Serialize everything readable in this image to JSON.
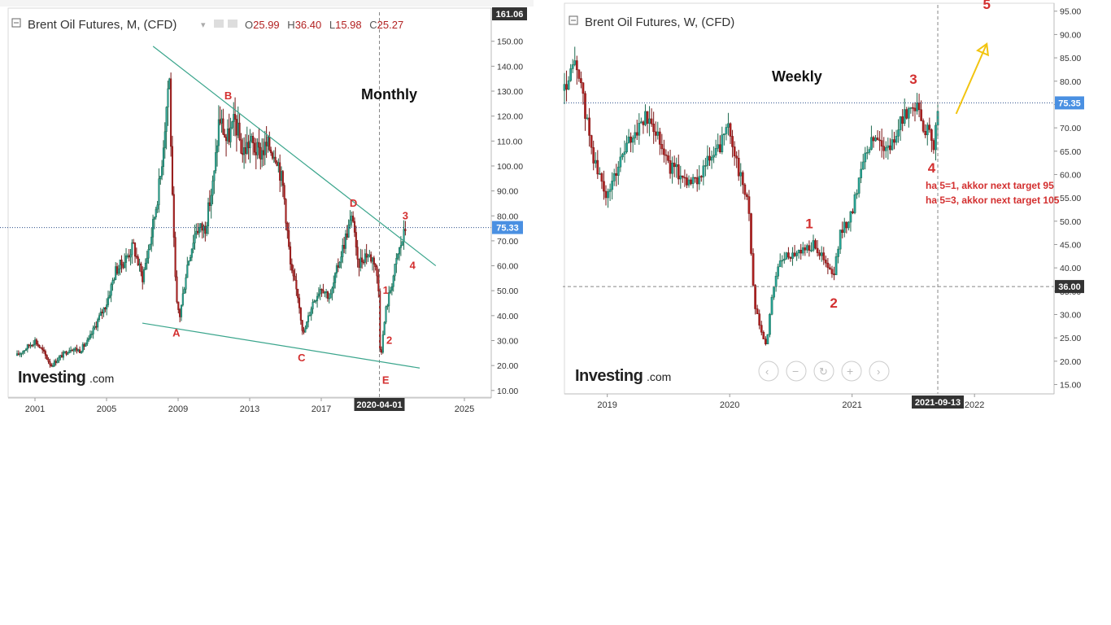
{
  "charts": [
    {
      "id": "left",
      "header": {
        "title": "Brent Oil Futures,  M,  (CFD)",
        "ohlc": {
          "o": "O",
          "o_val": "25.99",
          "h": "H",
          "h_val": "36.40",
          "l": "L",
          "l_val": "15.98",
          "c": "C",
          "c_val": "25.27"
        }
      },
      "timeframe_label": "Monthly",
      "logo": {
        "main": "Investing",
        "suffix": ".com"
      },
      "yaxis_ticks": [
        "150.00",
        "140.00",
        "130.00",
        "120.00",
        "110.00",
        "100.00",
        "90.00",
        "80.00",
        "70.00",
        "60.00",
        "50.00",
        "40.00",
        "30.00",
        "20.00",
        "10.00"
      ],
      "xaxis_ticks": [
        "2001",
        "2005",
        "2009",
        "2013",
        "2017",
        "2025"
      ],
      "price_badge": "75.33",
      "top_badge": "161.06",
      "crosshair_date": "2020-04-01",
      "wave_labels": [
        "B",
        "A",
        "C",
        "D",
        "E",
        "1",
        "2",
        "3",
        "4"
      ]
    },
    {
      "id": "right",
      "header": {
        "title": "Brent Oil Futures,  W,  (CFD)"
      },
      "timeframe_label": "Weekly",
      "logo": {
        "main": "Investing",
        "suffix": ".com"
      },
      "yaxis_ticks": [
        "95.00",
        "90.00",
        "85.00",
        "80.00",
        "75.00",
        "70.00",
        "65.00",
        "60.00",
        "55.00",
        "50.00",
        "45.00",
        "40.00",
        "35.00",
        "30.00",
        "25.00",
        "20.00",
        "15.00"
      ],
      "xaxis_ticks": [
        "2019",
        "2020",
        "2021",
        "2022"
      ],
      "price_badge": "75.35",
      "level_badge": "36.00",
      "crosshair_date": "2021-09-13",
      "wave_labels": [
        "1",
        "2",
        "3",
        "4",
        "5"
      ],
      "annotations": [
        "ha 5=1, akkor next target 95",
        "ha 5=3, akkor next target  105"
      ]
    }
  ],
  "chart_data": [
    {
      "type": "line",
      "title": "Brent Oil Futures, M, (CFD)",
      "xlabel": "",
      "ylabel": "",
      "x_unit": "year",
      "ylim": [
        7,
        161
      ],
      "xlim": [
        1999.5,
        2026.5
      ],
      "series": [
        {
          "name": "Brent Oil Futures",
          "x": [
            2000.0,
            2000.5,
            2001.0,
            2001.5,
            2001.9,
            2002.5,
            2003.0,
            2003.5,
            2004.0,
            2004.5,
            2005.0,
            2005.5,
            2006.0,
            2006.5,
            2007.0,
            2007.5,
            2008.0,
            2008.3,
            2008.5,
            2008.7,
            2008.9,
            2009.1,
            2009.5,
            2010.0,
            2010.5,
            2011.0,
            2011.3,
            2011.7,
            2012.2,
            2012.6,
            2013.0,
            2013.5,
            2014.0,
            2014.5,
            2014.9,
            2015.3,
            2015.7,
            2016.0,
            2016.5,
            2017.0,
            2017.5,
            2018.0,
            2018.5,
            2018.8,
            2019.0,
            2019.5,
            2020.0,
            2020.2,
            2020.3,
            2020.6,
            2021.0,
            2021.3,
            2021.6,
            2021.7
          ],
          "y": [
            24,
            27,
            30,
            25,
            20,
            24,
            27,
            26,
            30,
            38,
            45,
            58,
            62,
            68,
            55,
            72,
            95,
            120,
            138,
            80,
            45,
            40,
            60,
            75,
            75,
            95,
            120,
            110,
            118,
            105,
            110,
            105,
            108,
            105,
            90,
            58,
            48,
            32,
            45,
            52,
            47,
            62,
            75,
            80,
            60,
            65,
            62,
            50,
            22,
            42,
            55,
            65,
            72,
            75
          ]
        }
      ],
      "trendlines": [
        {
          "name": "upper",
          "x": [
            2007.6,
            2023.4
          ],
          "y": [
            148,
            60
          ]
        },
        {
          "name": "lower",
          "x": [
            2007.0,
            2022.5
          ],
          "y": [
            37,
            19
          ]
        }
      ],
      "horizontal_lines": [
        75.33
      ],
      "vertical_lines": [
        2020.25
      ]
    },
    {
      "type": "line",
      "title": "Brent Oil Futures, W, (CFD)",
      "xlabel": "",
      "ylabel": "",
      "x_unit": "year",
      "ylim": [
        13,
        96
      ],
      "xlim": [
        2018.65,
        2022.65
      ],
      "series": [
        {
          "name": "Brent Oil Futures",
          "x": [
            2018.65,
            2018.75,
            2018.8,
            2018.9,
            2019.0,
            2019.1,
            2019.2,
            2019.3,
            2019.4,
            2019.5,
            2019.6,
            2019.7,
            2019.8,
            2019.9,
            2019.95,
            2020.0,
            2020.08,
            2020.15,
            2020.2,
            2020.25,
            2020.3,
            2020.35,
            2020.4,
            2020.5,
            2020.6,
            2020.7,
            2020.8,
            2020.85,
            2020.9,
            2021.0,
            2021.1,
            2021.2,
            2021.3,
            2021.4,
            2021.5,
            2021.55,
            2021.62,
            2021.67,
            2021.7
          ],
          "y": [
            78,
            84,
            76,
            62,
            55,
            63,
            68,
            72,
            70,
            62,
            60,
            58,
            62,
            65,
            68,
            70,
            60,
            55,
            32,
            27,
            23,
            35,
            41,
            43,
            44,
            45,
            40,
            38,
            47,
            52,
            65,
            68,
            65,
            71,
            76,
            72,
            69,
            65,
            75.35
          ]
        }
      ],
      "horizontal_lines": [
        75.35,
        36.0
      ],
      "vertical_lines": [
        2021.7
      ],
      "arrow": {
        "x": [
          2021.85,
          2022.1
        ],
        "y": [
          73,
          88
        ]
      },
      "wave_points": [
        {
          "label": "1",
          "x": 2020.65,
          "y": 46
        },
        {
          "label": "2",
          "x": 2020.85,
          "y": 36
        },
        {
          "label": "3",
          "x": 2021.5,
          "y": 77
        },
        {
          "label": "4",
          "x": 2021.65,
          "y": 65
        },
        {
          "label": "5",
          "x": 2022.1,
          "y": 93
        }
      ]
    }
  ],
  "colors": {
    "up": "#26a69a",
    "down": "#b22222",
    "trendline": "#3aa58c",
    "wave_label": "#d32f2f",
    "arrow": "#f2c40f",
    "price_badge": "#4a90e2",
    "dark_badge": "#333333",
    "axis_text": "#333333"
  }
}
